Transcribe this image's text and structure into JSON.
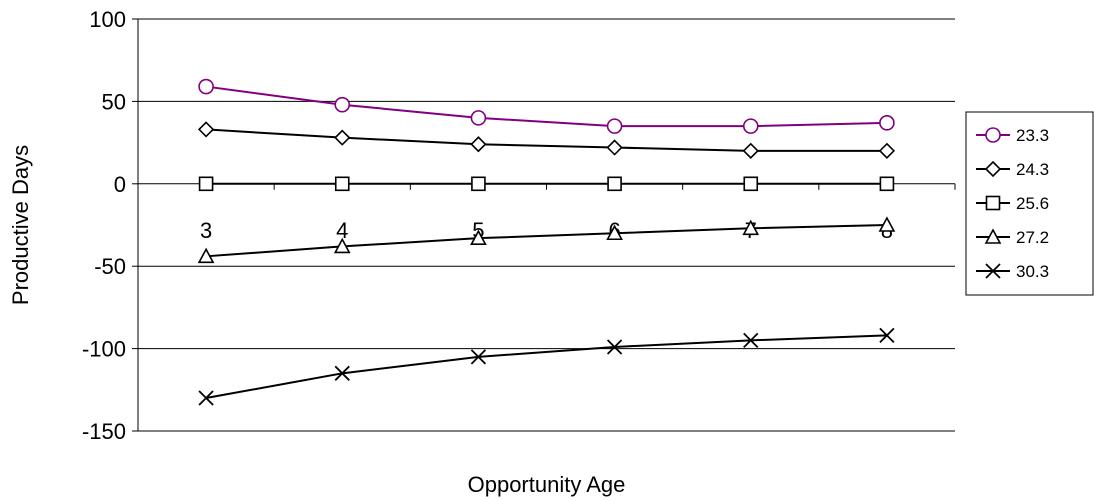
{
  "chart_data": {
    "type": "line",
    "title": "",
    "xlabel": "Opportunity Age",
    "ylabel": "Productive Days",
    "categories": [
      "3",
      "4",
      "5",
      "6",
      "7",
      "8"
    ],
    "ylim": [
      -150,
      100
    ],
    "yticks": [
      100,
      50,
      0,
      -50,
      -100,
      -150
    ],
    "grid": true,
    "legend_position": "right",
    "series": [
      {
        "name": "23.3",
        "marker": "circle",
        "color": "#800080",
        "values": [
          59,
          48,
          40,
          35,
          35,
          37
        ]
      },
      {
        "name": "24.3",
        "marker": "diamond",
        "color": "#000000",
        "values": [
          33,
          28,
          24,
          22,
          20,
          20
        ]
      },
      {
        "name": "25.6",
        "marker": "square",
        "color": "#000000",
        "values": [
          0,
          0,
          0,
          0,
          0,
          0
        ]
      },
      {
        "name": "27.2",
        "marker": "triangle",
        "color": "#000000",
        "values": [
          -44,
          -38,
          -33,
          -30,
          -27,
          -25
        ]
      },
      {
        "name": "30.3",
        "marker": "x",
        "color": "#000000",
        "values": [
          -130,
          -115,
          -105,
          -99,
          -95,
          -92
        ]
      }
    ]
  }
}
